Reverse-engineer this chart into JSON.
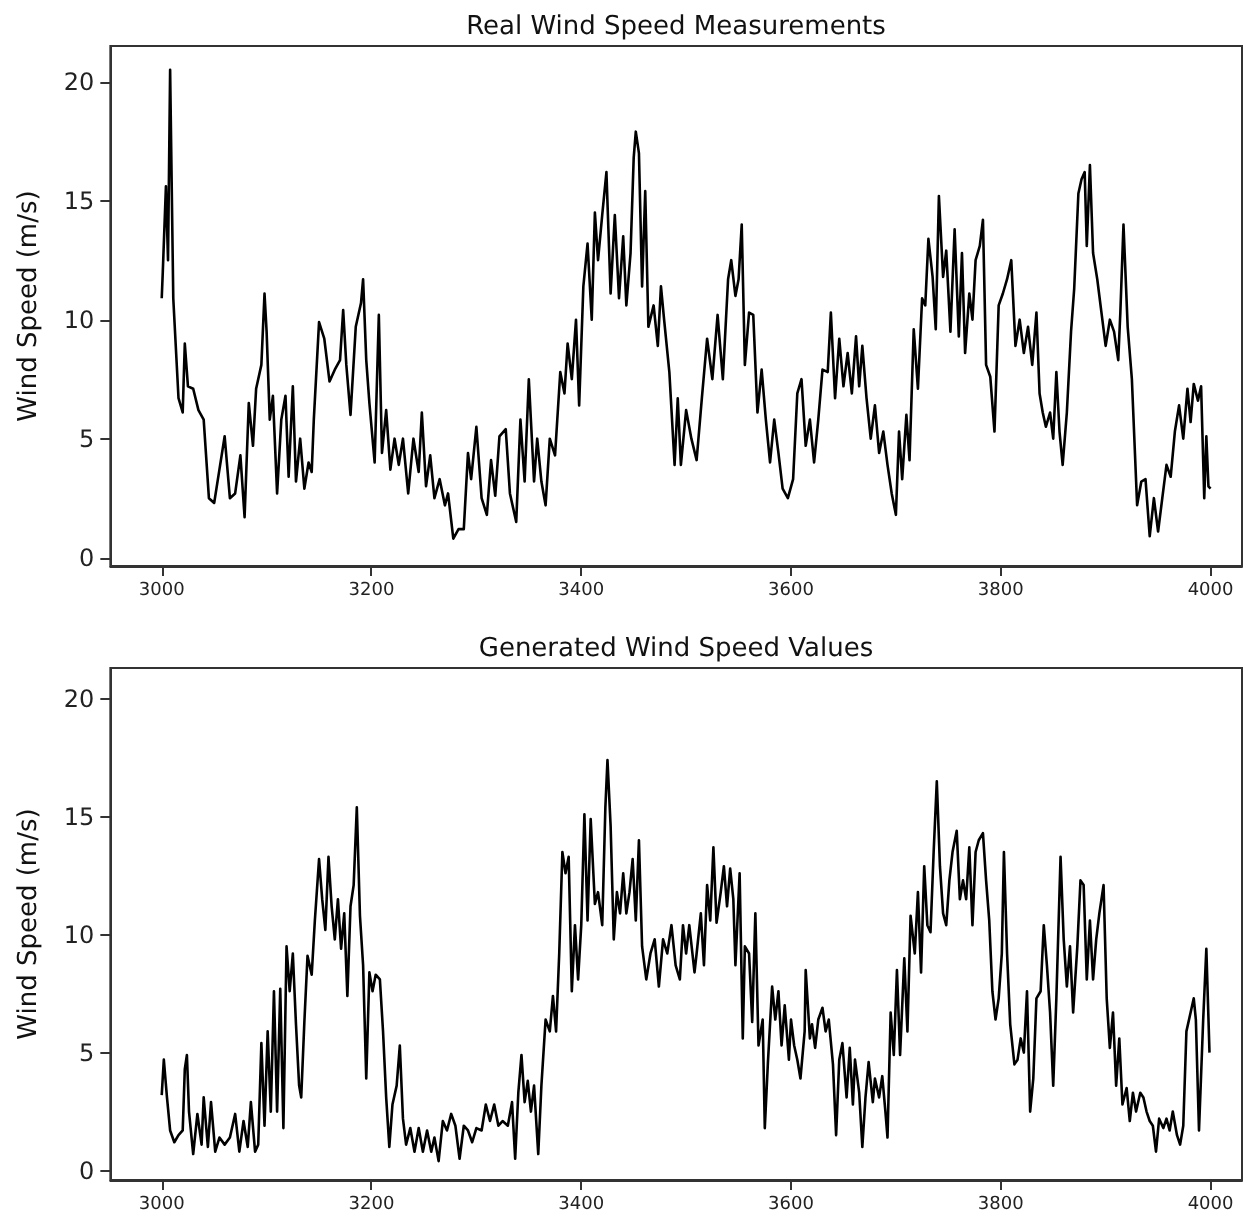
{
  "chart_data": [
    {
      "type": "line",
      "title": "Real Wind Speed Measurements",
      "ylabel": "Wind Speed (m/s)",
      "color": "#000000",
      "xlim": [
        2951,
        4030
      ],
      "xticks": [
        3000,
        3200,
        3400,
        3600,
        3800,
        4000
      ],
      "ylim": [
        -0.35,
        21.5
      ],
      "yticks": [
        0,
        5,
        10,
        15,
        20
      ],
      "x": [
        3000,
        3001,
        3004,
        3006,
        3008,
        3011,
        3016,
        3020,
        3022,
        3025,
        3030,
        3035,
        3040,
        3045,
        3050,
        3055,
        3060,
        3065,
        3070,
        3075,
        3079,
        3083,
        3087,
        3090,
        3095,
        3098,
        3100,
        3103,
        3106,
        3110,
        3114,
        3118,
        3121,
        3125,
        3128,
        3132,
        3136,
        3140,
        3143,
        3145,
        3150,
        3155,
        3160,
        3165,
        3170,
        3173,
        3176,
        3180,
        3185,
        3190,
        3192,
        3195,
        3198,
        3203,
        3207,
        3210,
        3214,
        3218,
        3222,
        3226,
        3230,
        3235,
        3240,
        3245,
        3248,
        3252,
        3256,
        3260,
        3265,
        3270,
        3273,
        3278,
        3283,
        3288,
        3292,
        3295,
        3300,
        3305,
        3310,
        3314,
        3318,
        3322,
        3328,
        3332,
        3338,
        3342,
        3346,
        3350,
        3355,
        3358,
        3362,
        3366,
        3370,
        3375,
        3380,
        3384,
        3387,
        3391,
        3395,
        3398,
        3402,
        3406,
        3410,
        3413,
        3416,
        3420,
        3424,
        3428,
        3432,
        3436,
        3440,
        3443,
        3447,
        3450,
        3452,
        3455,
        3458,
        3461,
        3464,
        3469,
        3473,
        3476,
        3479,
        3484,
        3489,
        3492,
        3495,
        3500,
        3505,
        3510,
        3515,
        3520,
        3525,
        3530,
        3535,
        3540,
        3543,
        3547,
        3550,
        3553,
        3556,
        3560,
        3564,
        3568,
        3572,
        3576,
        3580,
        3584,
        3588,
        3592,
        3597,
        3602,
        3606,
        3610,
        3614,
        3618,
        3622,
        3626,
        3630,
        3635,
        3638,
        3642,
        3646,
        3650,
        3654,
        3658,
        3662,
        3665,
        3668,
        3672,
        3676,
        3680,
        3684,
        3688,
        3692,
        3696,
        3700,
        3703,
        3706,
        3710,
        3713,
        3717,
        3721,
        3725,
        3728,
        3731,
        3735,
        3738,
        3741,
        3745,
        3748,
        3752,
        3756,
        3760,
        3763,
        3766,
        3770,
        3773,
        3776,
        3780,
        3783,
        3786,
        3790,
        3794,
        3798,
        3802,
        3806,
        3810,
        3814,
        3818,
        3822,
        3826,
        3830,
        3834,
        3837,
        3840,
        3843,
        3847,
        3850,
        3853,
        3856,
        3859,
        3863,
        3867,
        3870,
        3874,
        3877,
        3880,
        3882,
        3885,
        3888,
        3892,
        3896,
        3900,
        3904,
        3908,
        3912,
        3914,
        3917,
        3921,
        3925,
        3930,
        3934,
        3938,
        3942,
        3946,
        3950,
        3954,
        3958,
        3962,
        3966,
        3970,
        3974,
        3978,
        3981,
        3984,
        3988,
        3991,
        3994,
        3996,
        3998,
        4000
      ],
      "values": [
        10.9,
        12,
        15.6,
        12.5,
        20.5,
        10.9,
        6.7,
        6.1,
        9.0,
        7.2,
        7.1,
        6.2,
        5.8,
        2.5,
        2.3,
        3.7,
        5.1,
        2.5,
        2.7,
        4.3,
        1.7,
        6.5,
        4.7,
        7.1,
        8.1,
        11.1,
        9.5,
        5.8,
        6.8,
        2.7,
        5.8,
        6.8,
        3.4,
        7.2,
        3.2,
        5.0,
        2.9,
        4.0,
        3.6,
        5.8,
        9.9,
        9.2,
        7.4,
        7.9,
        8.3,
        10.4,
        8.1,
        6.0,
        9.7,
        10.7,
        11.7,
        8.3,
        6.5,
        4.0,
        10.2,
        4.4,
        6.2,
        3.7,
        5.0,
        3.9,
        5.0,
        2.7,
        5.0,
        3.6,
        6.1,
        3.0,
        4.3,
        2.5,
        3.3,
        2.2,
        2.7,
        0.8,
        1.2,
        1.2,
        4.4,
        3.3,
        5.5,
        2.5,
        1.8,
        4.1,
        2.6,
        5.1,
        5.4,
        2.7,
        1.5,
        5.8,
        3.2,
        7.5,
        3.2,
        5.0,
        3.2,
        2.2,
        5.0,
        4.3,
        7.8,
        6.9,
        9.0,
        7.5,
        10.0,
        6.4,
        11.4,
        13.2,
        10.0,
        14.5,
        12.5,
        14.4,
        16.2,
        11.1,
        14.4,
        10.9,
        13.5,
        10.6,
        12.8,
        16.8,
        17.9,
        17.0,
        11.4,
        15.4,
        9.7,
        10.6,
        8.9,
        11.4,
        10.0,
        7.8,
        3.9,
        6.7,
        3.9,
        6.2,
        5.0,
        4.1,
        6.7,
        9.2,
        7.5,
        10.2,
        7.5,
        11.7,
        12.5,
        11.0,
        11.7,
        14.0,
        8.1,
        10.3,
        10.2,
        6.1,
        7.9,
        5.8,
        4.0,
        5.8,
        4.4,
        2.9,
        2.5,
        3.3,
        6.9,
        7.5,
        4.7,
        5.8,
        4.0,
        5.8,
        7.9,
        7.8,
        10.3,
        6.7,
        9.2,
        7.2,
        8.6,
        6.9,
        9.3,
        7.2,
        8.9,
        6.7,
        5.0,
        6.4,
        4.4,
        5.3,
        3.9,
        2.7,
        1.8,
        5.3,
        3.3,
        6.0,
        4.1,
        9.6,
        7.1,
        10.9,
        10.6,
        13.4,
        11.8,
        9.6,
        15.2,
        11.8,
        12.9,
        9.5,
        13.8,
        9.3,
        12.8,
        8.6,
        11.1,
        10.0,
        12.5,
        13.1,
        14.2,
        8.1,
        7.6,
        5.3,
        10.6,
        11.1,
        11.7,
        12.5,
        8.9,
        10.0,
        8.6,
        9.7,
        8.1,
        10.3,
        6.9,
        6.1,
        5.5,
        6.1,
        5.0,
        7.8,
        5.3,
        3.9,
        6.1,
        9.5,
        11.3,
        15.3,
        15.9,
        16.2,
        13.1,
        16.5,
        12.8,
        11.7,
        10.3,
        8.9,
        10.0,
        9.5,
        8.3,
        10.3,
        14.0,
        9.7,
        7.5,
        2.2,
        3.2,
        3.3,
        0.9,
        2.5,
        1.1,
        2.5,
        3.9,
        3.4,
        5.3,
        6.4,
        5.0,
        7.1,
        5.7,
        7.3,
        6.6,
        7.2,
        2.5,
        5.1,
        3.0,
        2.9
      ]
    },
    {
      "type": "line",
      "title": "Generated Wind Speed Values",
      "ylabel": "Wind Speed (m/s)",
      "color": "#000000",
      "xlim": [
        2951,
        4030
      ],
      "xticks": [
        3000,
        3200,
        3400,
        3600,
        3800,
        4000
      ],
      "ylim": [
        -0.4,
        21.3
      ],
      "yticks": [
        0,
        5,
        10,
        15,
        20
      ],
      "x": [
        3000,
        3002,
        3005,
        3008,
        3012,
        3016,
        3020,
        3022,
        3024,
        3026,
        3030,
        3034,
        3038,
        3040,
        3044,
        3047,
        3051,
        3055,
        3060,
        3065,
        3070,
        3074,
        3078,
        3082,
        3085,
        3089,
        3092,
        3095,
        3098,
        3101,
        3104,
        3107,
        3110,
        3113,
        3116,
        3119,
        3122,
        3125,
        3128,
        3131,
        3133,
        3136,
        3139,
        3143,
        3146,
        3150,
        3153,
        3156,
        3159,
        3162,
        3165,
        3168,
        3171,
        3174,
        3177,
        3180,
        3183,
        3186,
        3189,
        3192,
        3195,
        3198,
        3201,
        3204,
        3208,
        3211,
        3214,
        3217,
        3220,
        3224,
        3227,
        3230,
        3233,
        3237,
        3241,
        3245,
        3249,
        3253,
        3257,
        3260,
        3264,
        3268,
        3272,
        3276,
        3280,
        3284,
        3288,
        3292,
        3296,
        3300,
        3305,
        3309,
        3313,
        3317,
        3321,
        3325,
        3330,
        3334,
        3337,
        3340,
        3343,
        3346,
        3349,
        3352,
        3355,
        3359,
        3362,
        3366,
        3370,
        3373,
        3376,
        3379,
        3382,
        3385,
        3388,
        3391,
        3394,
        3397,
        3400,
        3403,
        3406,
        3409,
        3413,
        3416,
        3420,
        3423,
        3425,
        3428,
        3431,
        3434,
        3437,
        3440,
        3443,
        3446,
        3449,
        3452,
        3455,
        3458,
        3462,
        3466,
        3470,
        3474,
        3478,
        3482,
        3486,
        3490,
        3494,
        3497,
        3500,
        3503,
        3508,
        3510,
        3514,
        3517,
        3520,
        3523,
        3526,
        3529,
        3533,
        3536,
        3539,
        3542,
        3545,
        3547,
        3551,
        3554,
        3556,
        3560,
        3563,
        3566,
        3569,
        3573,
        3575,
        3578,
        3582,
        3585,
        3588,
        3591,
        3594,
        3598,
        3600,
        3603,
        3606,
        3609,
        3613,
        3614,
        3618,
        3620,
        3623,
        3626,
        3630,
        3633,
        3636,
        3640,
        3643,
        3646,
        3649,
        3653,
        3656,
        3659,
        3661,
        3665,
        3668,
        3671,
        3674,
        3678,
        3680,
        3684,
        3687,
        3690,
        3692,
        3695,
        3698,
        3701,
        3704,
        3708,
        3711,
        3714,
        3718,
        3721,
        3724,
        3727,
        3730,
        3733,
        3736,
        3739,
        3742,
        3745,
        3748,
        3751,
        3754,
        3758,
        3761,
        3764,
        3767,
        3770,
        3773,
        3776,
        3779,
        3783,
        3786,
        3789,
        3792,
        3795,
        3798,
        3801,
        3803,
        3806,
        3809,
        3813,
        3816,
        3819,
        3822,
        3825,
        3828,
        3831,
        3834,
        3838,
        3841,
        3844,
        3847,
        3850,
        3853,
        3857,
        3860,
        3863,
        3866,
        3869,
        3873,
        3876,
        3879,
        3882,
        3885,
        3888,
        3891,
        3894,
        3898,
        3901,
        3904,
        3907,
        3910,
        3913,
        3916,
        3920,
        3923,
        3926,
        3929,
        3933,
        3936,
        3939,
        3942,
        3945,
        3948,
        3951,
        3955,
        3958,
        3961,
        3964,
        3968,
        3971,
        3974,
        3977,
        3981,
        3984,
        3986,
        3989,
        3993,
        3996,
        3999
      ],
      "values": [
        3.2,
        4.7,
        3.1,
        1.7,
        1.2,
        1.5,
        1.7,
        4.3,
        4.9,
        2.5,
        0.7,
        2.4,
        1.1,
        3.1,
        1.0,
        2.9,
        0.8,
        1.4,
        1.1,
        1.4,
        2.4,
        0.8,
        2.1,
        1.0,
        2.9,
        0.8,
        1.1,
        5.4,
        1.9,
        5.9,
        2.5,
        7.6,
        2.5,
        7.7,
        1.8,
        9.5,
        7.6,
        9.2,
        6.2,
        3.6,
        3.1,
        6.3,
        9.1,
        8.3,
        10.6,
        13.2,
        11.5,
        10.2,
        13.3,
        11.2,
        9.8,
        11.5,
        9.4,
        10.9,
        7.4,
        11.2,
        12.1,
        15.4,
        10.8,
        8.7,
        3.9,
        8.4,
        7.6,
        8.3,
        8.1,
        5.9,
        3.1,
        1.0,
        2.8,
        3.6,
        5.3,
        2.2,
        1.1,
        1.8,
        0.8,
        1.8,
        0.8,
        1.7,
        0.8,
        1.4,
        0.4,
        2.1,
        1.7,
        2.4,
        1.9,
        0.5,
        1.9,
        1.7,
        1.2,
        1.8,
        1.7,
        2.8,
        2.1,
        2.8,
        1.9,
        2.1,
        1.9,
        2.9,
        0.5,
        3.3,
        4.9,
        2.9,
        3.8,
        2.5,
        3.6,
        0.7,
        3.6,
        6.4,
        5.9,
        7.4,
        5.9,
        9.2,
        13.5,
        12.6,
        13.3,
        7.6,
        10.4,
        8.1,
        10.4,
        15.1,
        10.6,
        14.9,
        11.3,
        11.8,
        10.4,
        15.4,
        17.4,
        14.6,
        9.8,
        11.8,
        10.9,
        12.6,
        10.9,
        11.8,
        13.2,
        10.6,
        14.0,
        9.5,
        8.1,
        9.2,
        9.8,
        7.8,
        9.8,
        9.2,
        10.4,
        8.7,
        8.1,
        10.4,
        9.2,
        10.4,
        8.4,
        9.2,
        10.9,
        8.7,
        12.1,
        10.6,
        13.7,
        10.5,
        11.8,
        12.9,
        11.2,
        12.8,
        11.5,
        8.7,
        12.6,
        5.6,
        9.5,
        9.2,
        6.3,
        10.9,
        5.3,
        6.4,
        1.8,
        4.6,
        7.8,
        6.4,
        7.6,
        5.3,
        7.0,
        4.7,
        6.4,
        5.3,
        4.7,
        3.9,
        5.9,
        8.5,
        5.6,
        6.2,
        5.2,
        6.4,
        6.9,
        5.9,
        6.4,
        4.5,
        1.5,
        4.7,
        5.4,
        3.1,
        5.2,
        2.8,
        4.7,
        3.3,
        1.0,
        3.1,
        4.6,
        2.9,
        3.9,
        3.1,
        4.0,
        2.5,
        1.4,
        6.7,
        4.9,
        8.5,
        4.9,
        9.0,
        5.9,
        10.8,
        9.2,
        11.8,
        8.4,
        12.9,
        10.4,
        10.1,
        13.5,
        16.5,
        12.9,
        10.9,
        10.4,
        12.3,
        13.5,
        14.4,
        11.5,
        12.3,
        11.5,
        13.7,
        10.4,
        13.5,
        14.0,
        14.3,
        12.3,
        10.6,
        7.6,
        6.4,
        7.3,
        9.2,
        13.5,
        9.2,
        6.2,
        4.5,
        4.7,
        5.6,
        5.0,
        7.6,
        2.5,
        3.9,
        7.3,
        7.6,
        10.4,
        8.7,
        6.7,
        3.6,
        7.3,
        13.3,
        9.8,
        7.8,
        9.5,
        6.7,
        9.5,
        12.3,
        12.1,
        8.1,
        10.6,
        8.1,
        9.8,
        10.9,
        12.1,
        7.3,
        5.2,
        6.7,
        3.6,
        5.6,
        2.8,
        3.5,
        2.1,
        3.3,
        2.5,
        3.3,
        3.1,
        2.5,
        2.1,
        1.9,
        0.8,
        2.2,
        1.8,
        2.2,
        1.7,
        2.5,
        1.5,
        1.1,
        1.9,
        5.9,
        6.7,
        7.3,
        6.4,
        1.7,
        6.4,
        9.4,
        5.0
      ]
    }
  ]
}
